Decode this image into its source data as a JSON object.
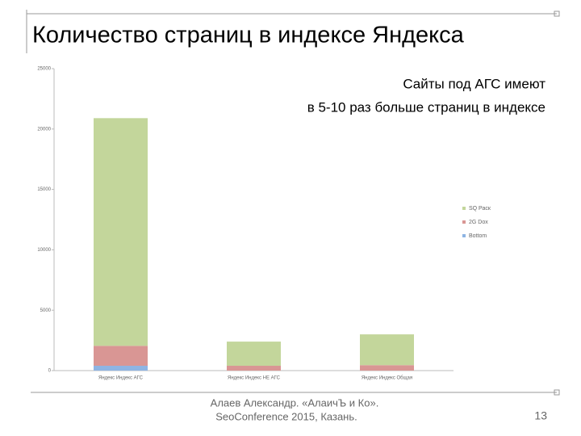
{
  "slide": {
    "title": "Количество страниц в индексе Яндекса",
    "note_lines": [
      "Сайты под АГС имеют",
      "в 5-10 раз больше страниц в индексе"
    ],
    "footer_lines": [
      "Алаев Александр. «АлаичЪ и Ко».",
      "SeoConference 2015, Казань."
    ],
    "page_number": "13"
  },
  "chart_data": {
    "type": "stacked_bar",
    "categories": [
      "Яндекс Индекс АГС",
      "Яндекс Индекс НЕ АГС",
      "Яндекс Индекс Общая"
    ],
    "series": [
      {
        "name": "Bottom",
        "color": "#8eb4e3",
        "values": [
          400,
          0,
          0
        ]
      },
      {
        "name": "2G Dox",
        "color": "#d99694",
        "values": [
          1650,
          400,
          450
        ]
      },
      {
        "name": "SQ Раск",
        "color": "#c3d69b",
        "values": [
          18850,
          2000,
          2550
        ]
      }
    ],
    "ylim": [
      0,
      25000
    ],
    "yticks": [
      0,
      5000,
      10000,
      15000,
      20000,
      25000
    ]
  }
}
